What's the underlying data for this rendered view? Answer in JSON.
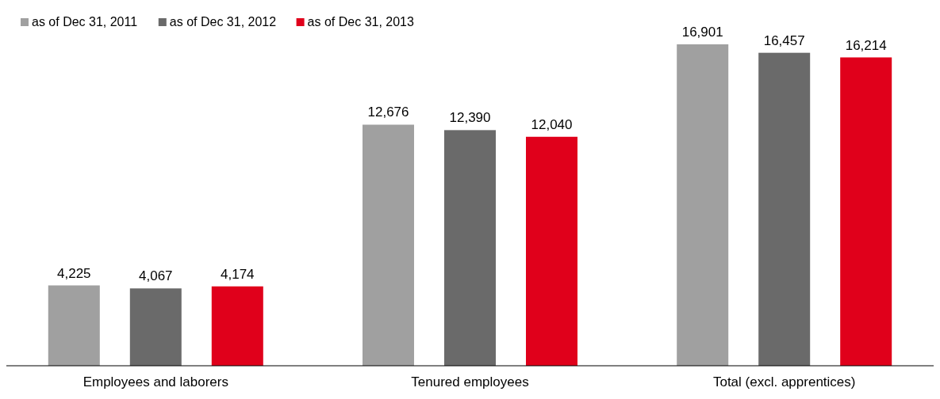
{
  "chart_data": {
    "type": "bar",
    "categories": [
      "Employees and laborers",
      "Tenured employees",
      "Total (excl. apprentices)"
    ],
    "series": [
      {
        "name": "as of Dec 31, 2011",
        "color": "#a0a0a0",
        "values": [
          4225,
          12676,
          16901
        ],
        "value_labels": [
          "4,225",
          "12,676",
          "16,901"
        ]
      },
      {
        "name": "as of Dec 31, 2012",
        "color": "#6a6a6a",
        "values": [
          4067,
          12390,
          16457
        ],
        "value_labels": [
          "4,067",
          "12,390",
          "16,457"
        ]
      },
      {
        "name": "as of Dec 31, 2013",
        "color": "#e0001b",
        "values": [
          4174,
          12040,
          16214
        ],
        "value_labels": [
          "4,174",
          "12,040",
          "16,214"
        ]
      }
    ],
    "legend": "top left"
  }
}
